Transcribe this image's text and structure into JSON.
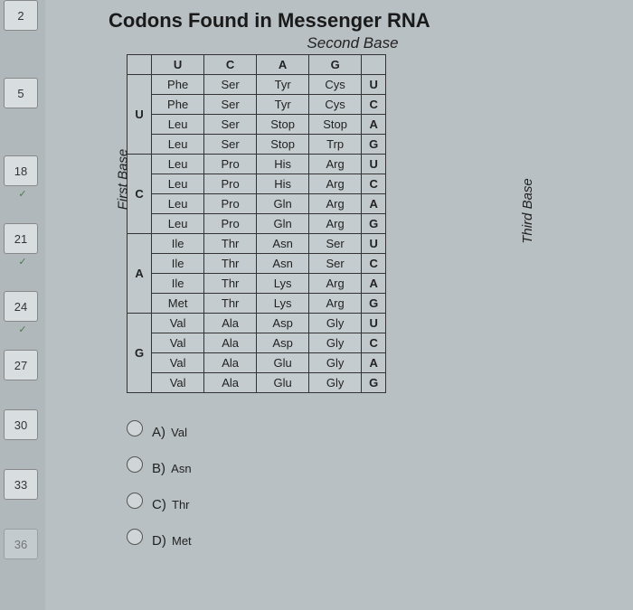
{
  "title": "Codons Found in Messenger RNA",
  "subtitle": "Second Base",
  "first_base_label": "First Base",
  "third_base_label": "Third Base",
  "col_headers": [
    "U",
    "C",
    "A",
    "G"
  ],
  "row_headers": [
    "U",
    "C",
    "A",
    "G"
  ],
  "third_base": [
    "U",
    "C",
    "A",
    "G"
  ],
  "codons": {
    "U": [
      [
        "Phe",
        "Ser",
        "Tyr",
        "Cys"
      ],
      [
        "Phe",
        "Ser",
        "Tyr",
        "Cys"
      ],
      [
        "Leu",
        "Ser",
        "Stop",
        "Stop"
      ],
      [
        "Leu",
        "Ser",
        "Stop",
        "Trp"
      ]
    ],
    "C": [
      [
        "Leu",
        "Pro",
        "His",
        "Arg"
      ],
      [
        "Leu",
        "Pro",
        "His",
        "Arg"
      ],
      [
        "Leu",
        "Pro",
        "Gln",
        "Arg"
      ],
      [
        "Leu",
        "Pro",
        "Gln",
        "Arg"
      ]
    ],
    "A": [
      [
        "Ile",
        "Thr",
        "Asn",
        "Ser"
      ],
      [
        "Ile",
        "Thr",
        "Asn",
        "Ser"
      ],
      [
        "Ile",
        "Thr",
        "Lys",
        "Arg"
      ],
      [
        "Met",
        "Thr",
        "Lys",
        "Arg"
      ]
    ],
    "G": [
      [
        "Val",
        "Ala",
        "Asp",
        "Gly"
      ],
      [
        "Val",
        "Ala",
        "Asp",
        "Gly"
      ],
      [
        "Val",
        "Ala",
        "Glu",
        "Gly"
      ],
      [
        "Val",
        "Ala",
        "Glu",
        "Gly"
      ]
    ]
  },
  "answers": [
    {
      "letter": "A)",
      "text": "Val"
    },
    {
      "letter": "B)",
      "text": "Asn"
    },
    {
      "letter": "C)",
      "text": "Thr"
    },
    {
      "letter": "D)",
      "text": "Met"
    }
  ],
  "nav_items": [
    "2",
    "5",
    "18",
    "21",
    "24",
    "27",
    "30",
    "33",
    "36"
  ],
  "colors": {
    "bg": "#b8c0c4",
    "table_bg": "#c4ccd0",
    "border": "#333333",
    "text": "#222222"
  }
}
